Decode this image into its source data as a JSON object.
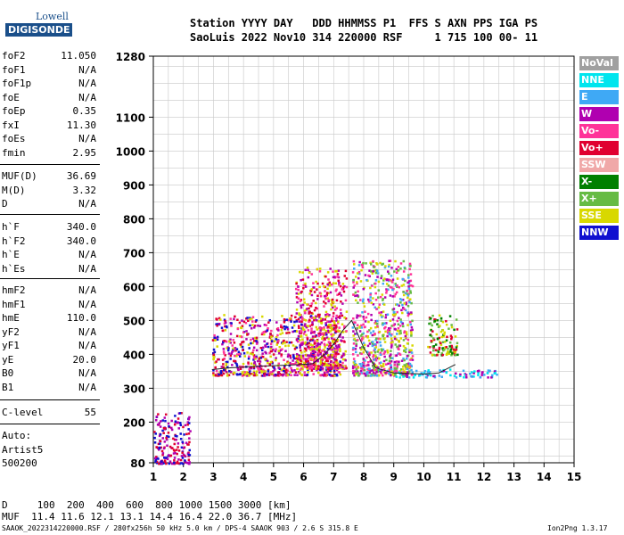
{
  "logo": {
    "line1": "Lowell",
    "line2": "DIGISONDE"
  },
  "header": {
    "labels": "Station YYYY DAY   DDD HHMMSS P1  FFS S AXN PPS IGA PS",
    "values": "SaoLuis 2022 Nov10 314 220000 RSF     1 715 100 00- 11"
  },
  "params1": [
    {
      "label": "foF2",
      "value": "11.050"
    },
    {
      "label": "foF1",
      "value": "N/A"
    },
    {
      "label": "foF1p",
      "value": "N/A"
    },
    {
      "label": "foE",
      "value": "N/A"
    },
    {
      "label": "foEp",
      "value": "0.35"
    },
    {
      "label": "fxI",
      "value": "11.30"
    },
    {
      "label": "foEs",
      "value": "N/A"
    },
    {
      "label": "fmin",
      "value": "2.95"
    }
  ],
  "params2": [
    {
      "label": "MUF(D)",
      "value": "36.69"
    },
    {
      "label": "M(D)",
      "value": "3.32"
    },
    {
      "label": "D",
      "value": "N/A"
    }
  ],
  "params3": [
    {
      "label": "h`F",
      "value": "340.0"
    },
    {
      "label": "h`F2",
      "value": "340.0"
    },
    {
      "label": "h`E",
      "value": "N/A"
    },
    {
      "label": "h`Es",
      "value": "N/A"
    }
  ],
  "params4": [
    {
      "label": "hmF2",
      "value": "N/A"
    },
    {
      "label": "hmF1",
      "value": "N/A"
    },
    {
      "label": "hmE",
      "value": "110.0"
    },
    {
      "label": "yF2",
      "value": "N/A"
    },
    {
      "label": "yF1",
      "value": "N/A"
    },
    {
      "label": "yE",
      "value": "20.0"
    },
    {
      "label": "B0",
      "value": "N/A"
    },
    {
      "label": "B1",
      "value": "N/A"
    }
  ],
  "params5": [
    {
      "label": "C-level",
      "value": "55"
    }
  ],
  "auto": {
    "l1": "Auto:",
    "l2": "Artist5",
    "l3": "500200"
  },
  "legend": [
    {
      "label": "NoVal",
      "color": "#a0a0a0"
    },
    {
      "label": "NNE",
      "color": "#00e5ee"
    },
    {
      "label": "E",
      "color": "#3fa9f5"
    },
    {
      "label": "W",
      "color": "#b000b0"
    },
    {
      "label": "Vo-",
      "color": "#ff3399"
    },
    {
      "label": "Vo+",
      "color": "#e00030"
    },
    {
      "label": "SSW",
      "color": "#f0a8a8"
    },
    {
      "label": "X-",
      "color": "#008000"
    },
    {
      "label": "X+",
      "color": "#66bb44"
    },
    {
      "label": "SSE",
      "color": "#d8d800"
    },
    {
      "label": "NNW",
      "color": "#1010d0"
    }
  ],
  "bottom": {
    "distances": "D     100  200  400  600  800 1000 1500 3000 [km]",
    "mufs": "MUF  11.4 11.6 12.1 13.1 14.4 16.4 22.0 36.7 [MHz]"
  },
  "footer": {
    "left": "SAAOK_2022314220000.RSF / 280fx256h 50 kHz 5.0 km / DPS-4 SAAOK 903 / 2.6 S 315.8 E",
    "right": "Ion2Png 1.3.17"
  },
  "chart_data": {
    "type": "scatter",
    "xlabel": "",
    "ylabel": "",
    "xlim": [
      1,
      15
    ],
    "ylim": [
      80,
      1280
    ],
    "x_ticks": [
      1,
      2,
      3,
      4,
      5,
      6,
      7,
      8,
      9,
      10,
      11,
      12,
      13,
      14,
      15
    ],
    "y_ticks": [
      80,
      200,
      300,
      400,
      500,
      600,
      700,
      800,
      900,
      1000,
      1100,
      1280
    ],
    "trace": {
      "name": "",
      "x": [
        2.95,
        3.5,
        4.5,
        5.5,
        6.3,
        6.7,
        7.0,
        7.3,
        7.6,
        8.0,
        8.4,
        9.0,
        10.0,
        10.5,
        11.05
      ],
      "y": [
        355,
        360,
        365,
        368,
        372,
        400,
        430,
        470,
        500,
        420,
        360,
        345,
        342,
        345,
        370
      ]
    },
    "clusters": [
      {
        "x": [
          2.95,
          7.2
        ],
        "y": [
          340,
          520
        ],
        "color_mix": "W,Vo+,Vo-,NNW,SSE"
      },
      {
        "x": [
          5.7,
          7.4
        ],
        "y": [
          360,
          660
        ],
        "color_mix": "W,Vo-,Vo+,SSE"
      },
      {
        "x": [
          7.6,
          9.6
        ],
        "y": [
          340,
          680
        ],
        "color_mix": "W,Vo-,SSE,E,X+"
      },
      {
        "x": [
          10.1,
          11.1
        ],
        "y": [
          400,
          520
        ],
        "color_mix": "SSE,X-,X+,Vo+"
      },
      {
        "x": [
          9.0,
          12.4
        ],
        "y": [
          335,
          360
        ],
        "color_mix": "NNE,E,W"
      },
      {
        "x": [
          1.0,
          2.2
        ],
        "y": [
          80,
          230
        ],
        "color_mix": "W,Vo+,NNW"
      }
    ]
  }
}
